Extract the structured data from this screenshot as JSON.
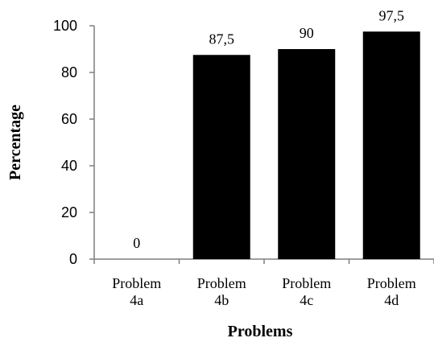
{
  "chart_data": {
    "type": "bar",
    "categories": [
      [
        "Problem",
        "4a"
      ],
      [
        "Problem",
        "4b"
      ],
      [
        "Problem",
        "4c"
      ],
      [
        "Problem",
        "4d"
      ]
    ],
    "values": [
      0,
      87.5,
      90,
      97.5
    ],
    "data_labels": [
      "0",
      "87,5",
      "90",
      "97,5"
    ],
    "xlabel": "Problems",
    "ylabel": "Percentage",
    "ylim": [
      0,
      100
    ],
    "yticks": [
      0,
      20,
      40,
      60,
      80,
      100
    ],
    "ytick_labels": [
      "0",
      "20",
      "40",
      "60",
      "80",
      "100"
    ],
    "bar_color": "#000000",
    "axis_color": "#7f7f7f",
    "grid": false,
    "legend": "none"
  }
}
